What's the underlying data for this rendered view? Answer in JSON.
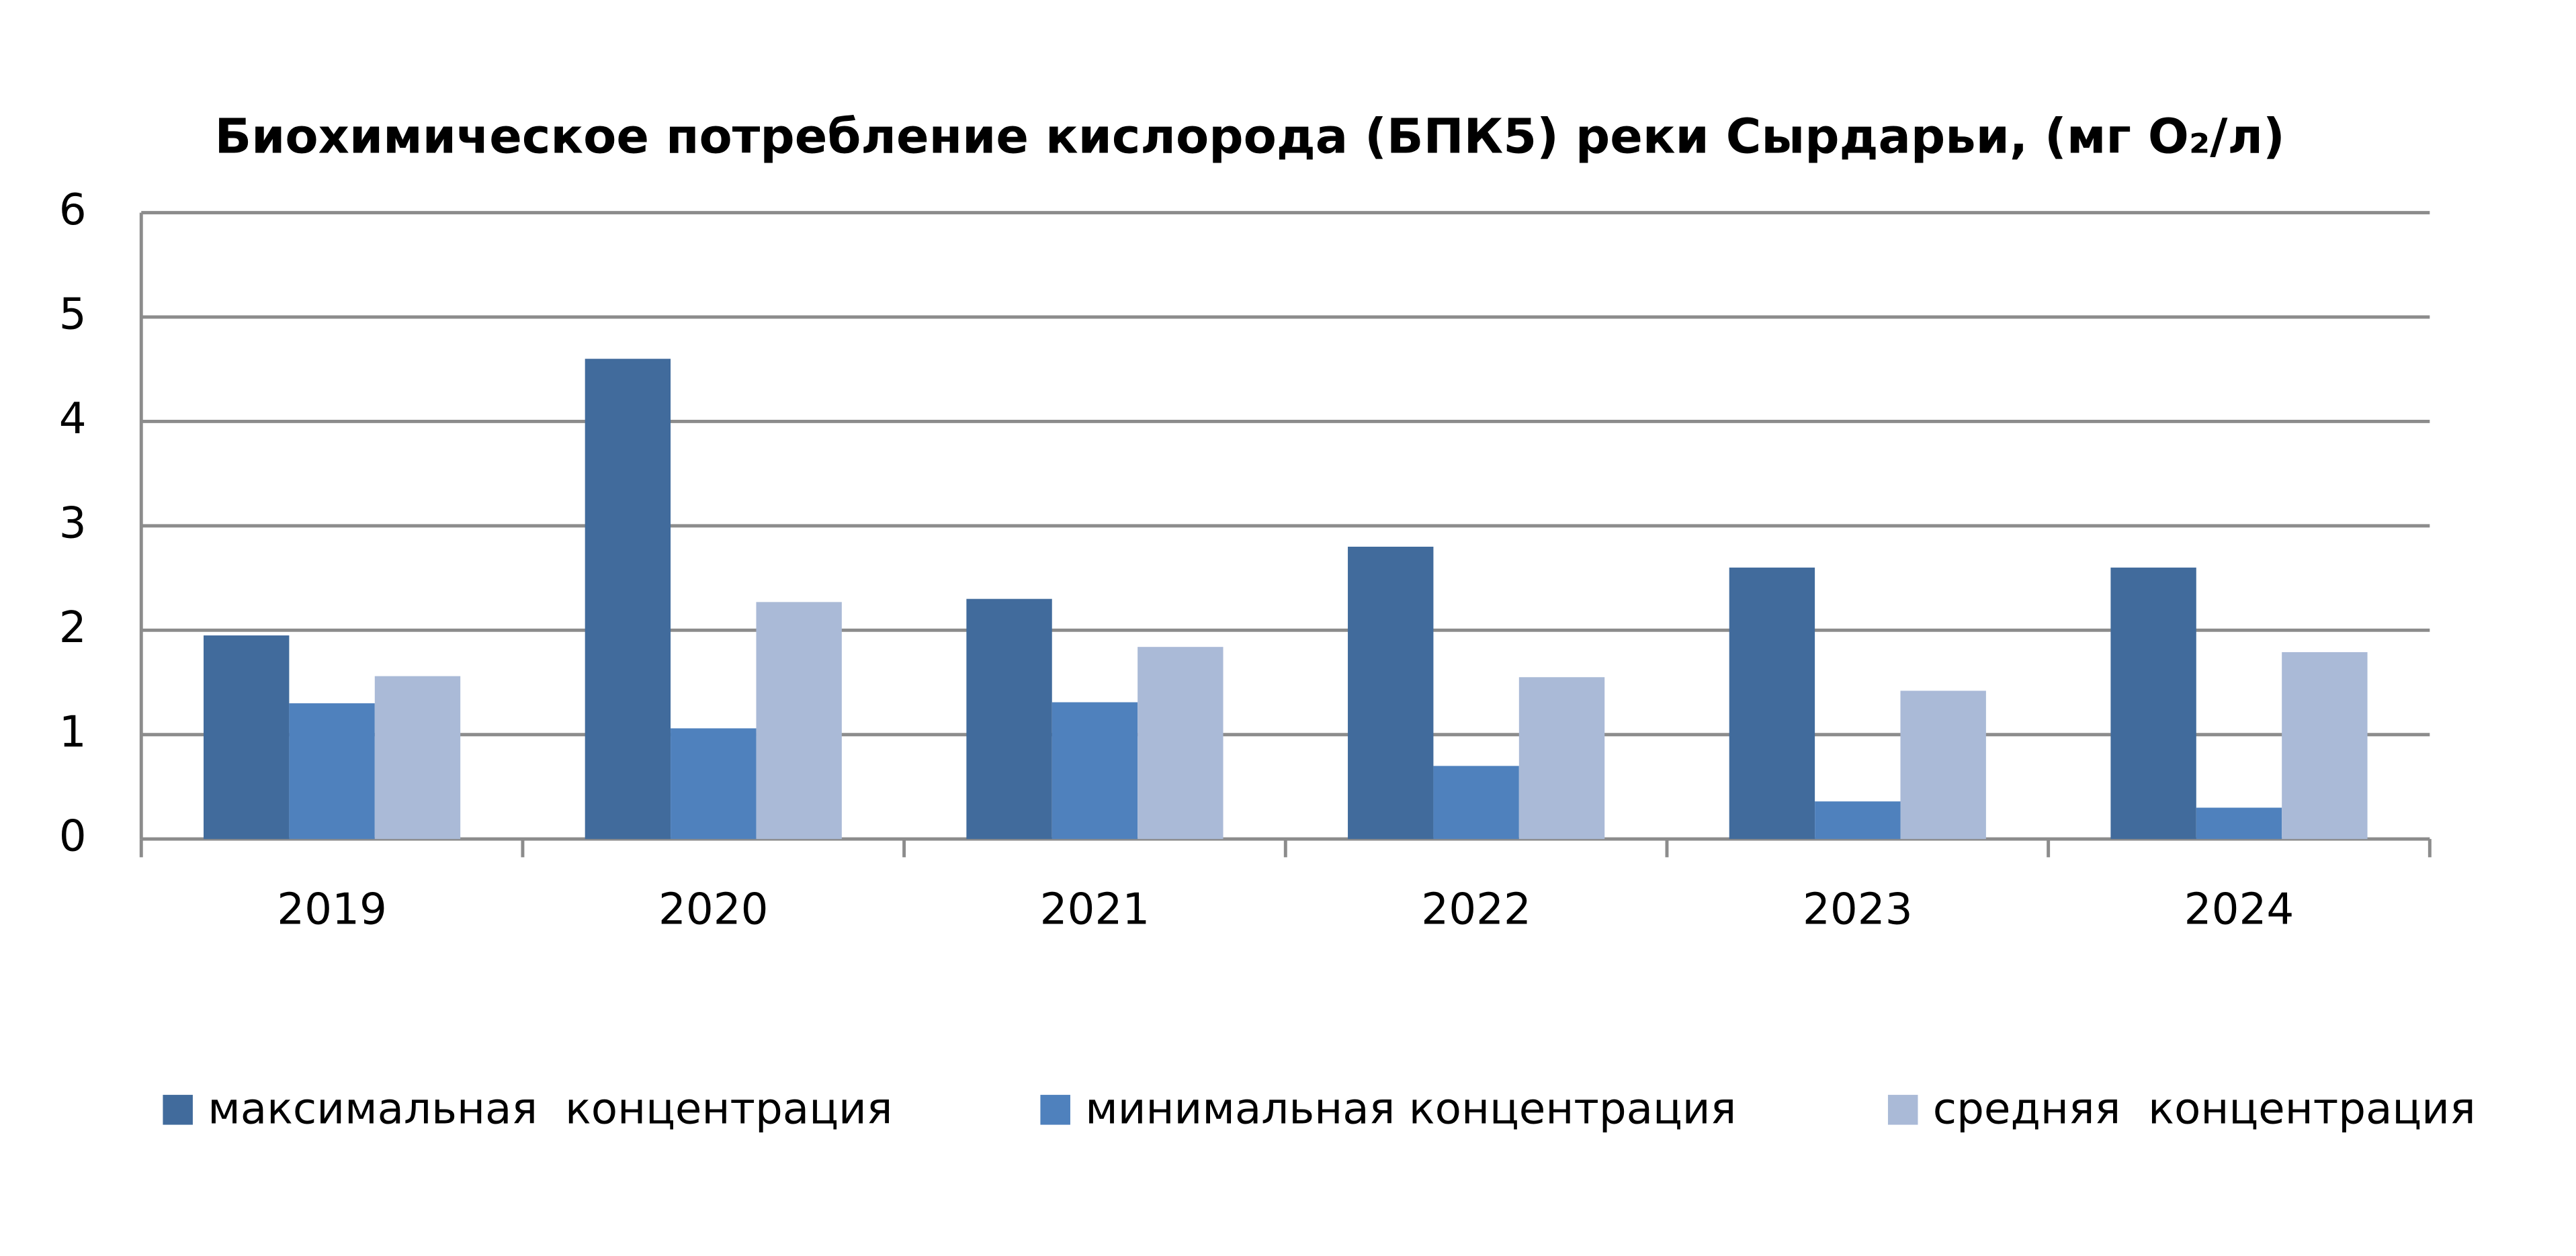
{
  "chart_data": {
    "type": "bar",
    "title": "Биохимическое потребление кислорода (БПК5) реки Сырдарьи, (мг O₂/л)",
    "categories": [
      "2019",
      "2020",
      "2021",
      "2022",
      "2023",
      "2024"
    ],
    "series": [
      {
        "name": "максимальная  концентрация",
        "color": "#416b9c",
        "values": [
          1.95,
          4.6,
          2.3,
          2.8,
          2.6,
          2.6
        ]
      },
      {
        "name": "минимальная концентрация",
        "color": "#4f81bd",
        "values": [
          1.3,
          1.06,
          1.31,
          0.7,
          0.36,
          0.3
        ]
      },
      {
        "name": "средняя  концентрация",
        "color": "#aabad7",
        "values": [
          1.56,
          2.27,
          1.84,
          1.55,
          1.42,
          1.79
        ]
      }
    ],
    "ylim": [
      0,
      6
    ],
    "yticks": [
      0,
      1,
      2,
      3,
      4,
      5,
      6
    ],
    "grid": true,
    "legend": "bottom"
  }
}
